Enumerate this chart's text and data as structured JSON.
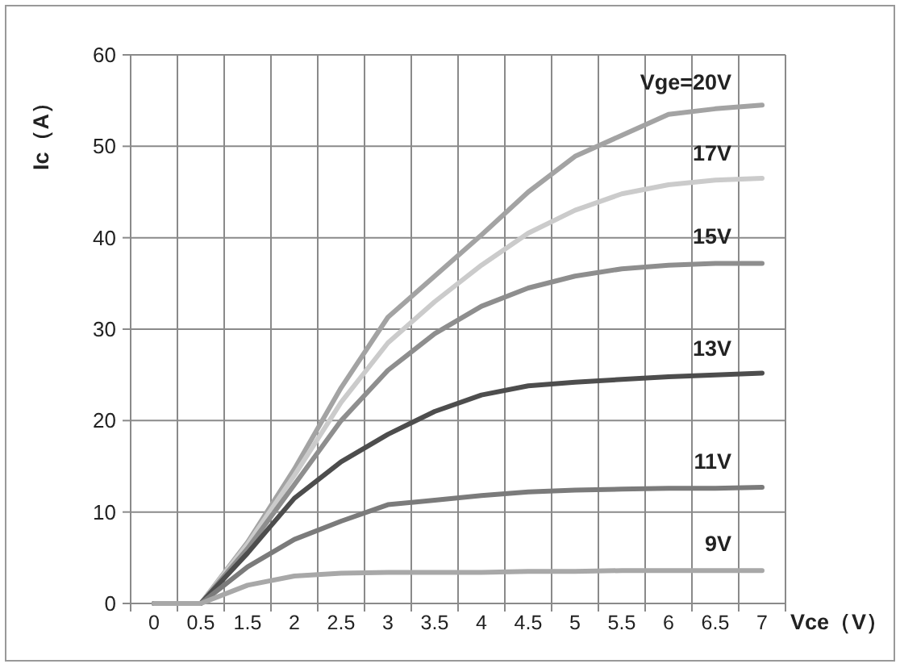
{
  "chart_data": {
    "type": "line",
    "xlabel": "Vce（V）",
    "ylabel": "Ic（A）",
    "categories": [
      "0",
      "0.5",
      "1.5",
      "2",
      "2.5",
      "3",
      "3.5",
      "4",
      "4.5",
      "5",
      "5.5",
      "6",
      "6.5",
      "7"
    ],
    "ylim": [
      0,
      60
    ],
    "yticks": [
      0,
      10,
      20,
      30,
      40,
      50,
      60
    ],
    "grid": true,
    "marker": "none",
    "series": [
      {
        "name": "Vge=20V",
        "color": "#a3a3a3",
        "values": [
          0,
          0,
          6.7,
          14.7,
          23.6,
          31.3,
          35.8,
          40.3,
          45,
          48.9,
          51.2,
          53.5,
          54.1,
          54.5
        ]
      },
      {
        "name": "17V",
        "color": "#cbcbcb",
        "values": [
          0,
          0,
          6.5,
          14,
          22,
          28.5,
          33,
          37,
          40.5,
          43,
          44.8,
          45.8,
          46.3,
          46.5
        ]
      },
      {
        "name": "15V",
        "color": "#8e8e8e",
        "values": [
          0,
          0,
          6,
          13,
          20,
          25.5,
          29.5,
          32.5,
          34.5,
          35.8,
          36.6,
          37,
          37.2,
          37.2
        ]
      },
      {
        "name": "13V",
        "color": "#4d4d4d",
        "values": [
          0,
          0,
          5.5,
          11.5,
          15.5,
          18.5,
          21,
          22.8,
          23.8,
          24.2,
          24.5,
          24.8,
          25,
          25.2
        ]
      },
      {
        "name": "11V",
        "color": "#7b7b7b",
        "values": [
          0,
          0,
          4,
          7,
          9,
          10.8,
          11.3,
          11.8,
          12.2,
          12.4,
          12.5,
          12.6,
          12.6,
          12.7
        ]
      },
      {
        "name": "9V",
        "color": "#a8a8a8",
        "values": [
          0,
          0,
          2,
          3,
          3.3,
          3.4,
          3.4,
          3.4,
          3.5,
          3.5,
          3.6,
          3.6,
          3.6,
          3.6
        ]
      }
    ]
  }
}
